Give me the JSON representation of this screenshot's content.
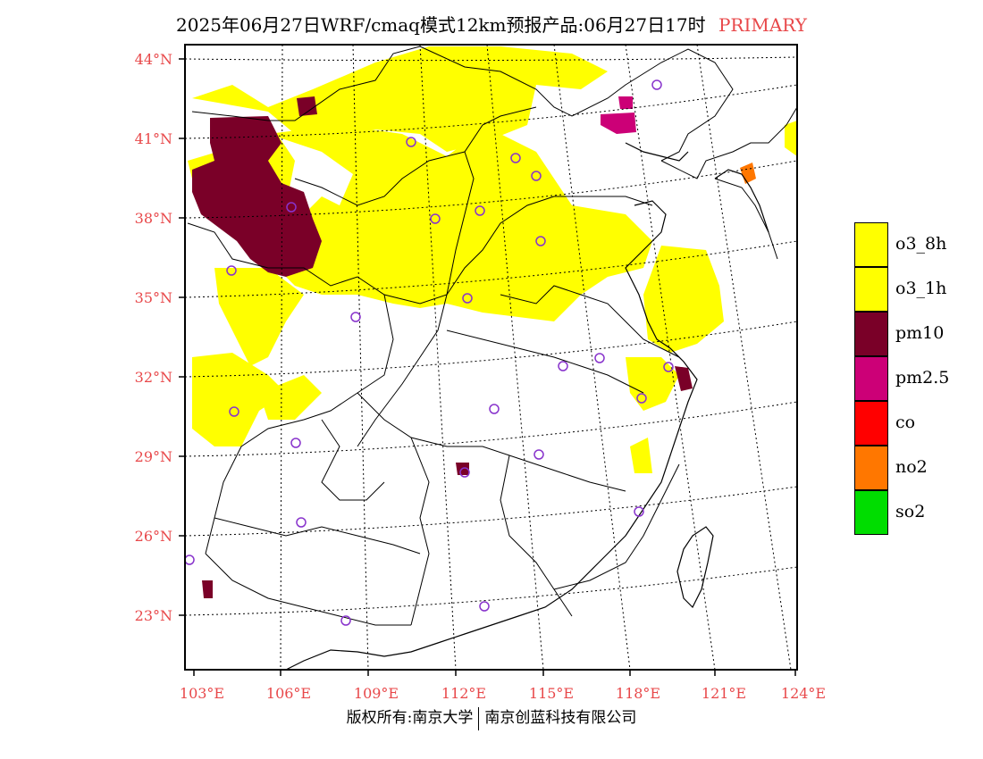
{
  "header": {
    "title": "2025年06月27日WRF/cmaq模式12km预报产品:06月27日17时",
    "tag": "PRIMARY"
  },
  "map": {
    "lon_labels": [
      "103°E",
      "106°E",
      "109°E",
      "112°E",
      "115°E",
      "118°E",
      "121°E",
      "124°E"
    ],
    "lat_labels": [
      "44°N",
      "41°N",
      "38°N",
      "35°N",
      "32°N",
      "29°N",
      "26°N",
      "23°N"
    ],
    "label_color": "#e8484a",
    "colors": {
      "o3_8h": "#ffff00",
      "pm10": "#7a0028",
      "pm25": "#cc0077",
      "no2": "#ff7700",
      "station": "#8833cc"
    }
  },
  "legend": {
    "items": [
      {
        "label": "o3_8h",
        "color": "#ffff00"
      },
      {
        "label": "o3_1h",
        "color": "#ffff00"
      },
      {
        "label": "pm10",
        "color": "#7a0028"
      },
      {
        "label": "pm2.5",
        "color": "#cc0077"
      },
      {
        "label": "co",
        "color": "#ff0000"
      },
      {
        "label": "no2",
        "color": "#ff7700"
      },
      {
        "label": "so2",
        "color": "#00dd00"
      }
    ]
  },
  "footer": {
    "left": "版权所有:南京大学",
    "right": "南京创蓝科技有限公司"
  }
}
